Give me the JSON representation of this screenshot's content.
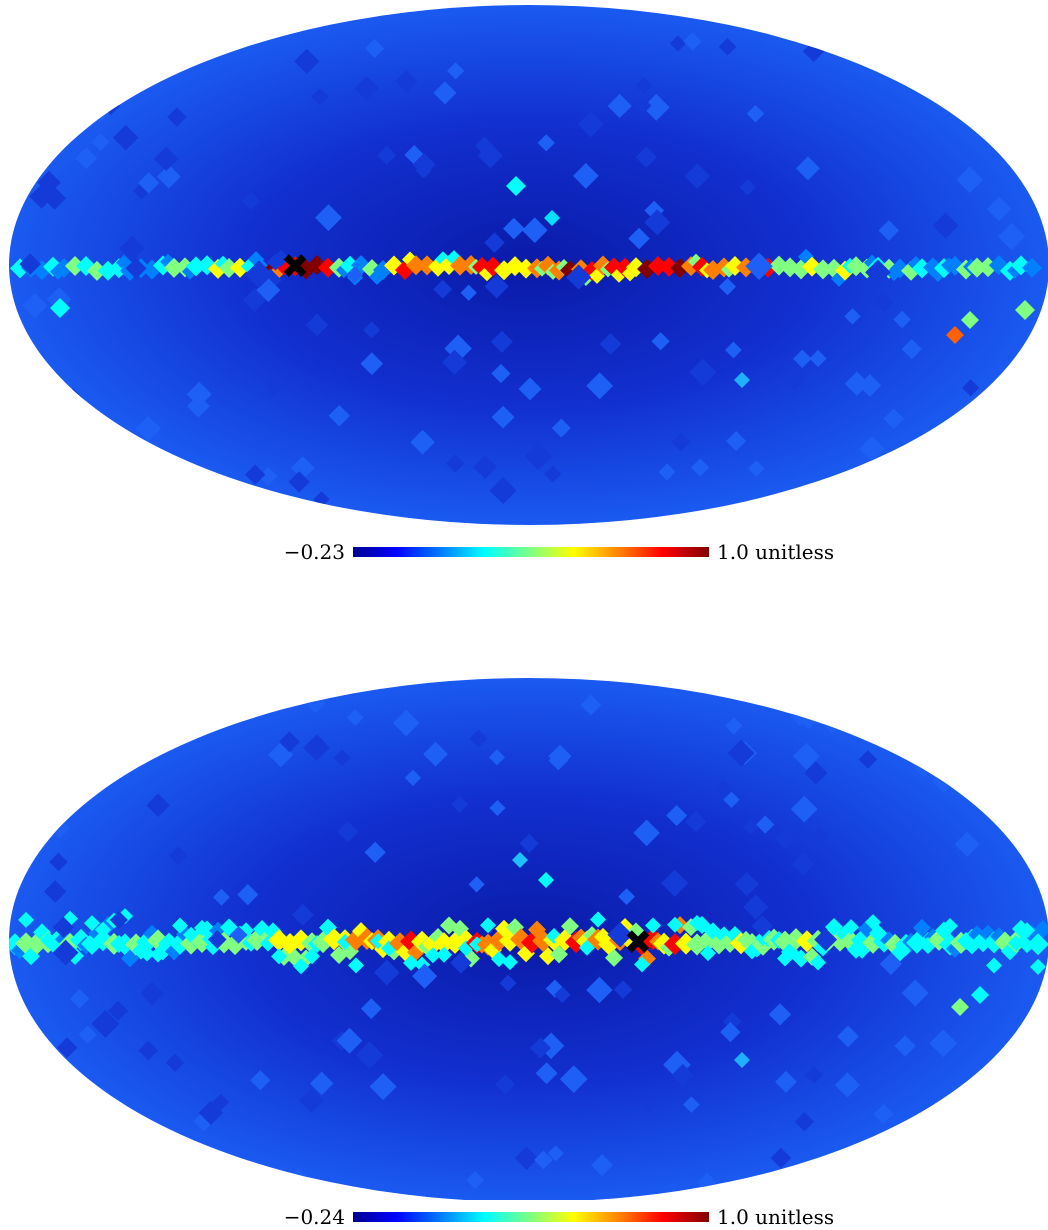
{
  "panels": [
    {
      "colorbar": {
        "min_label": "−0.23",
        "max_label": "1.0 unitless"
      },
      "marker": {
        "symbol": "✖"
      }
    },
    {
      "colorbar": {
        "min_label": "−0.24",
        "max_label": "1.0 unitless"
      },
      "marker": {
        "symbol": "✖"
      }
    }
  ],
  "colors": {
    "background_blue": "#1a3fe0",
    "deep_blue": "#0a1aa8",
    "colormap": [
      "#00008f",
      "#0000ff",
      "#0080ff",
      "#00ffff",
      "#80ff80",
      "#ffff00",
      "#ff8000",
      "#ff0000",
      "#800000"
    ]
  }
}
